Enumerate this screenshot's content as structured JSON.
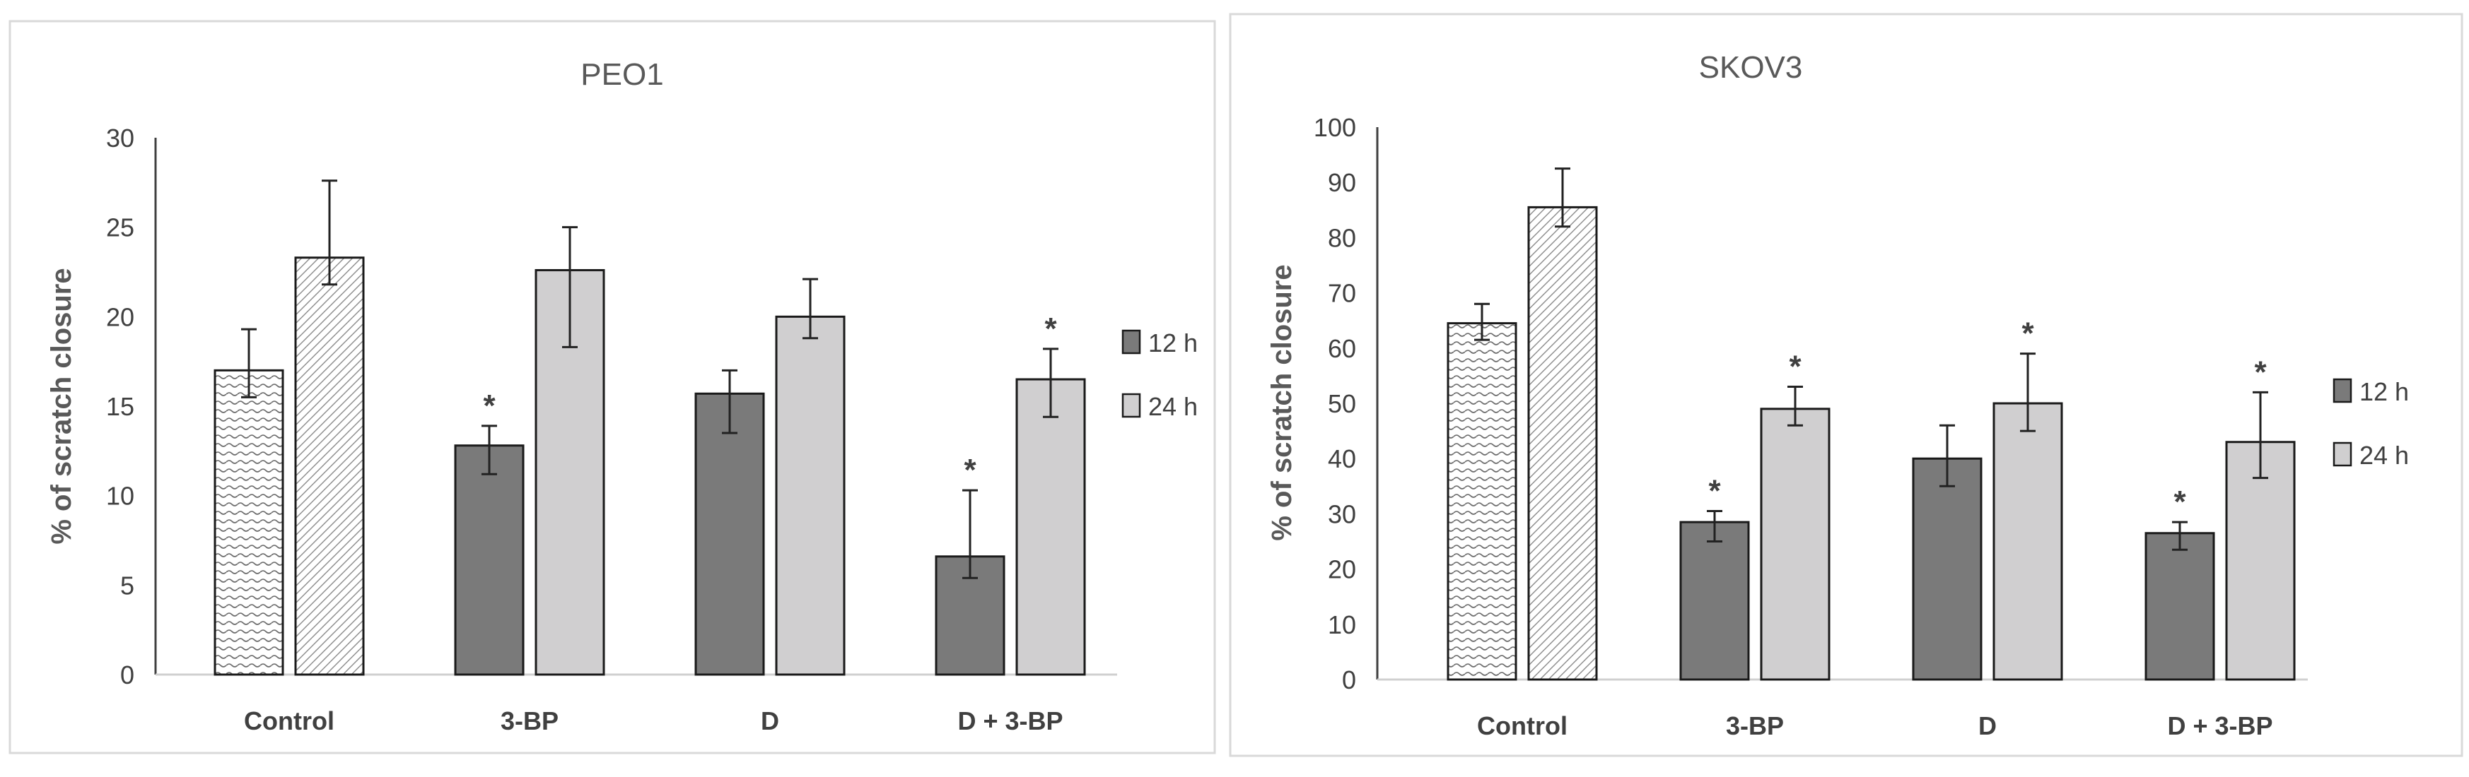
{
  "chart_data": [
    {
      "type": "bar",
      "title": "PEO1",
      "ylabel": "% of scratch closure",
      "xlabel": "",
      "ylim": [
        0,
        30
      ],
      "yticks": [
        0,
        5,
        10,
        15,
        20,
        25,
        30
      ],
      "categories": [
        "Control",
        "3-BP",
        "D",
        "D + 3-BP"
      ],
      "series": [
        {
          "name": "12 h",
          "color": "#7a7a7a",
          "values": [
            17.0,
            12.8,
            15.7,
            6.6
          ],
          "err_low": [
            1.5,
            1.6,
            2.2,
            1.2
          ],
          "err_high": [
            2.3,
            1.1,
            1.3,
            3.7
          ]
        },
        {
          "name": "24 h",
          "color": "#d0cfd0",
          "values": [
            23.3,
            22.6,
            20.0,
            16.5
          ],
          "err_low": [
            1.5,
            4.3,
            1.2,
            2.1
          ],
          "err_high": [
            4.3,
            2.4,
            2.1,
            1.7
          ]
        }
      ],
      "control_pattern": true,
      "significance": [
        [
          false,
          true,
          false,
          true
        ],
        [
          false,
          false,
          false,
          true
        ]
      ],
      "significance_mark": "*",
      "legend_position": "right",
      "grid": false
    },
    {
      "type": "bar",
      "title": "SKOV3",
      "ylabel": "% of scratch closure",
      "xlabel": "",
      "ylim": [
        0,
        100
      ],
      "yticks": [
        0,
        10,
        20,
        30,
        40,
        50,
        60,
        70,
        80,
        90,
        100
      ],
      "categories": [
        "Control",
        "3-BP",
        "D",
        "D + 3-BP"
      ],
      "series": [
        {
          "name": "12 h",
          "color": "#7a7a7a",
          "values": [
            64.5,
            28.5,
            40.0,
            26.5
          ],
          "err_low": [
            3.0,
            3.5,
            5.0,
            3.0
          ],
          "err_high": [
            3.5,
            2.0,
            6.0,
            2.0
          ]
        },
        {
          "name": "24 h",
          "color": "#d0cfd0",
          "values": [
            85.5,
            49.0,
            50.0,
            43.0
          ],
          "err_low": [
            3.5,
            3.0,
            5.0,
            6.5
          ],
          "err_high": [
            7.0,
            4.0,
            9.0,
            9.0
          ]
        }
      ],
      "control_pattern": true,
      "significance": [
        [
          false,
          true,
          false,
          true
        ],
        [
          false,
          true,
          true,
          true
        ]
      ],
      "significance_mark": "*",
      "legend_position": "right",
      "grid": false
    }
  ]
}
